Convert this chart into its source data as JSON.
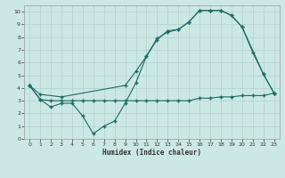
{
  "xlabel": "Humidex (Indice chaleur)",
  "bg_color": "#cce8e4",
  "grid_color": "#b0d0cc",
  "line_color": "#1a6b63",
  "xlim": [
    -0.5,
    23.5
  ],
  "ylim": [
    0,
    10.5
  ],
  "xticks": [
    0,
    1,
    2,
    3,
    4,
    5,
    6,
    7,
    8,
    9,
    10,
    11,
    12,
    13,
    14,
    15,
    16,
    17,
    18,
    19,
    20,
    21,
    22,
    23
  ],
  "yticks": [
    0,
    1,
    2,
    3,
    4,
    5,
    6,
    7,
    8,
    9,
    10
  ],
  "line1_x": [
    0,
    1,
    2,
    3,
    4,
    5,
    6,
    7,
    8,
    9,
    10,
    11,
    12,
    13,
    14,
    15,
    16,
    17,
    18,
    19,
    20,
    21,
    22,
    23
  ],
  "line1_y": [
    4.2,
    3.1,
    2.5,
    2.8,
    2.8,
    1.8,
    0.4,
    1.0,
    1.4,
    2.8,
    4.4,
    6.5,
    7.9,
    8.4,
    8.6,
    9.2,
    10.1,
    10.1,
    10.1,
    9.7,
    8.8,
    6.8,
    5.1,
    3.6
  ],
  "line2_x": [
    0,
    1,
    2,
    3,
    4,
    5,
    6,
    7,
    8,
    9,
    10,
    11,
    12,
    13,
    14,
    15,
    16,
    17,
    18,
    19,
    20,
    21,
    22,
    23
  ],
  "line2_y": [
    4.2,
    3.1,
    3.0,
    3.0,
    3.0,
    3.0,
    3.0,
    3.0,
    3.0,
    3.0,
    3.0,
    3.0,
    3.0,
    3.0,
    3.0,
    3.0,
    3.2,
    3.2,
    3.3,
    3.3,
    3.4,
    3.4,
    3.4,
    3.6
  ],
  "line3_x": [
    0,
    1,
    3,
    9,
    10,
    11,
    12,
    13,
    14,
    15,
    16,
    17,
    18,
    19,
    20,
    22,
    23
  ],
  "line3_y": [
    4.2,
    3.5,
    3.3,
    4.2,
    5.3,
    6.5,
    7.8,
    8.5,
    8.6,
    9.2,
    10.1,
    10.1,
    10.1,
    9.7,
    8.8,
    5.1,
    3.6
  ]
}
